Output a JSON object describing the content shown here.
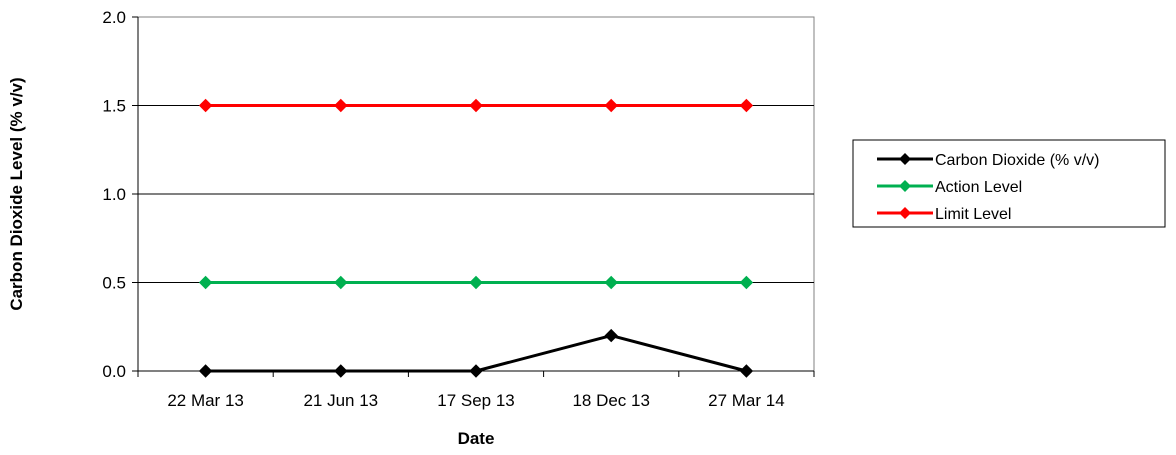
{
  "chart_data": {
    "type": "line",
    "title": "",
    "xlabel": "Date",
    "ylabel": "Carbon Dioxide Level (% v/v)",
    "categories": [
      "22 Mar 13",
      "21 Jun 13",
      "17 Sep 13",
      "18 Dec 13",
      "27 Mar 14"
    ],
    "ylim": [
      0,
      2
    ],
    "yticks": [
      "0.0",
      "0.5",
      "1.0",
      "1.5",
      "2.0"
    ],
    "grid": "horizontal",
    "legend_position": "right",
    "series": [
      {
        "name": "Carbon Dioxide (% v/v)",
        "values": [
          0,
          0,
          0,
          0.2,
          0
        ],
        "color": "#000000"
      },
      {
        "name": "Action Level",
        "values": [
          0.5,
          0.5,
          0.5,
          0.5,
          0.5
        ],
        "color": "#00b050"
      },
      {
        "name": "Limit Level",
        "values": [
          1.5,
          1.5,
          1.5,
          1.5,
          1.5
        ],
        "color": "#ff0000"
      }
    ]
  }
}
